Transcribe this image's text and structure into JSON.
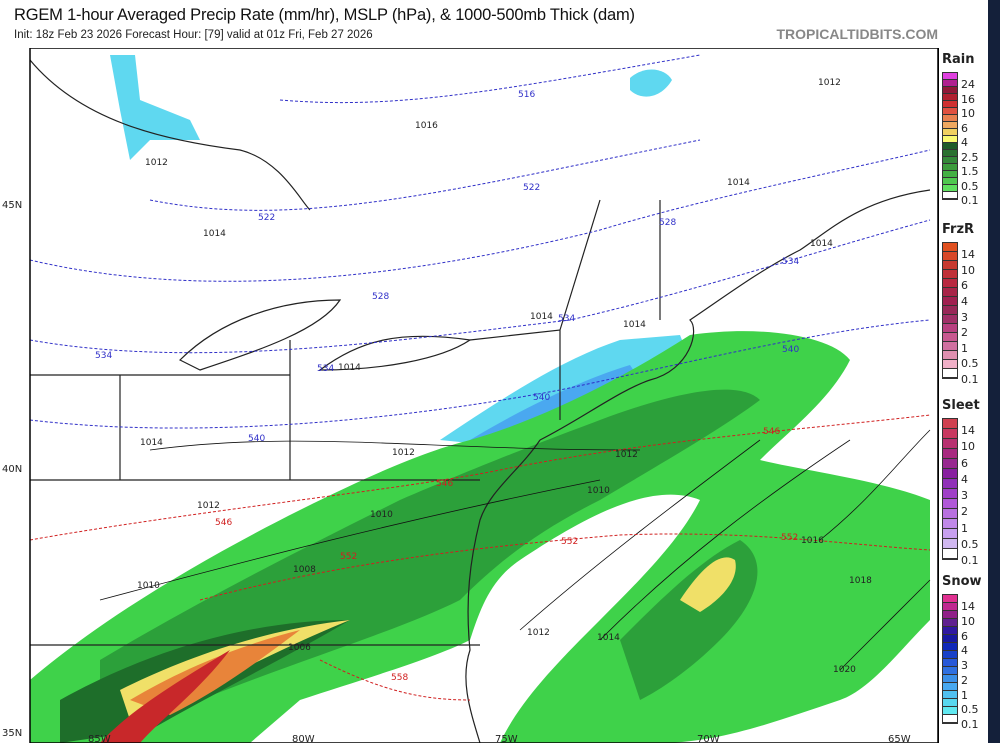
{
  "header": {
    "title": "RGEM 1-hour Averaged Precip Rate (mm/hr), MSLP (hPa), & 1000-500mb Thick (dam)",
    "subtitle": "Init: 18z Feb 23 2026   Forecast Hour: [79]   valid at 01z Fri, Feb 27 2026",
    "brand": "TROPICALTIDBITS.COM"
  },
  "map": {
    "lat_labels": [
      "45N",
      "40N",
      "35N"
    ],
    "lon_labels": [
      "85W",
      "80W",
      "75W",
      "70W",
      "65W"
    ],
    "isobars": [
      "1016",
      "1012",
      "1014",
      "1014",
      "1014",
      "1012",
      "1014",
      "1014",
      "1014",
      "1014",
      "1012",
      "1012",
      "1010",
      "1010",
      "1012",
      "1010",
      "1008",
      "1006",
      "1012",
      "1014",
      "1016",
      "1018",
      "1020"
    ],
    "thickness_rain_snow": [
      "516",
      "522",
      "528",
      "534",
      "522",
      "528",
      "534",
      "534",
      "534",
      "540",
      "540",
      "540"
    ],
    "thickness_warm": [
      "546",
      "546",
      "546",
      "552",
      "552",
      "552",
      "558"
    ],
    "colors": {
      "snow_light": "#5fd8f0",
      "snow_mid": "#4aa8f0",
      "rain_light": "#3fd24a",
      "rain_mid": "#2ca03a",
      "rain_dark": "#1e6e2a",
      "rain_heavy_yellow": "#f0e068",
      "rain_orange": "#e8843a",
      "rain_red": "#c8282a",
      "thickness_cold": "#3030c8",
      "thickness_warm": "#d02020"
    }
  },
  "legend": [
    {
      "name": "Rain",
      "ticks": [
        "24",
        "16",
        "10",
        "6",
        "4",
        "2.5",
        "1.5",
        "0.5",
        "0.1"
      ],
      "colors": [
        "#e040e0",
        "#b02090",
        "#901838",
        "#b02030",
        "#d03030",
        "#e05040",
        "#e88050",
        "#f0a860",
        "#f0d060",
        "#f8f870",
        "#1e5a28",
        "#2a7030",
        "#338838",
        "#3c9c3c",
        "#44b044",
        "#50c850",
        "#60e060",
        "#ffffff"
      ]
    },
    {
      "name": "FrzR",
      "ticks": [
        "14",
        "10",
        "6",
        "4",
        "3",
        "2",
        "1",
        "0.5",
        "0.1"
      ],
      "colors": [
        "#e05020",
        "#d84828",
        "#c83a30",
        "#c03038",
        "#b82840",
        "#a82448",
        "#a02050",
        "#982858",
        "#a03068",
        "#b84080",
        "#c85890",
        "#d070a0",
        "#e090b0",
        "#f0b0c8",
        "#ffffff"
      ]
    },
    {
      "name": "Sleet",
      "ticks": [
        "14",
        "10",
        "6",
        "4",
        "3",
        "2",
        "1",
        "0.5",
        "0.1"
      ],
      "colors": [
        "#d04050",
        "#c83860",
        "#b83070",
        "#a82880",
        "#982890",
        "#8820a0",
        "#9030b8",
        "#a040c8",
        "#b058d8",
        "#b870e0",
        "#c088e8",
        "#c8a0f0",
        "#d0b8f0",
        "#ffffff"
      ]
    },
    {
      "name": "Snow",
      "ticks": [
        "14",
        "10",
        "6",
        "4",
        "3",
        "2",
        "1",
        "0.5",
        "0.1"
      ],
      "colors": [
        "#e03090",
        "#c02890",
        "#902088",
        "#602090",
        "#3018a0",
        "#1818a0",
        "#1028b8",
        "#1840c8",
        "#2858d8",
        "#3070e0",
        "#3c90e8",
        "#48a8f0",
        "#50c0f0",
        "#58d8f0",
        "#60e8f0",
        "#ffffff"
      ]
    }
  ]
}
